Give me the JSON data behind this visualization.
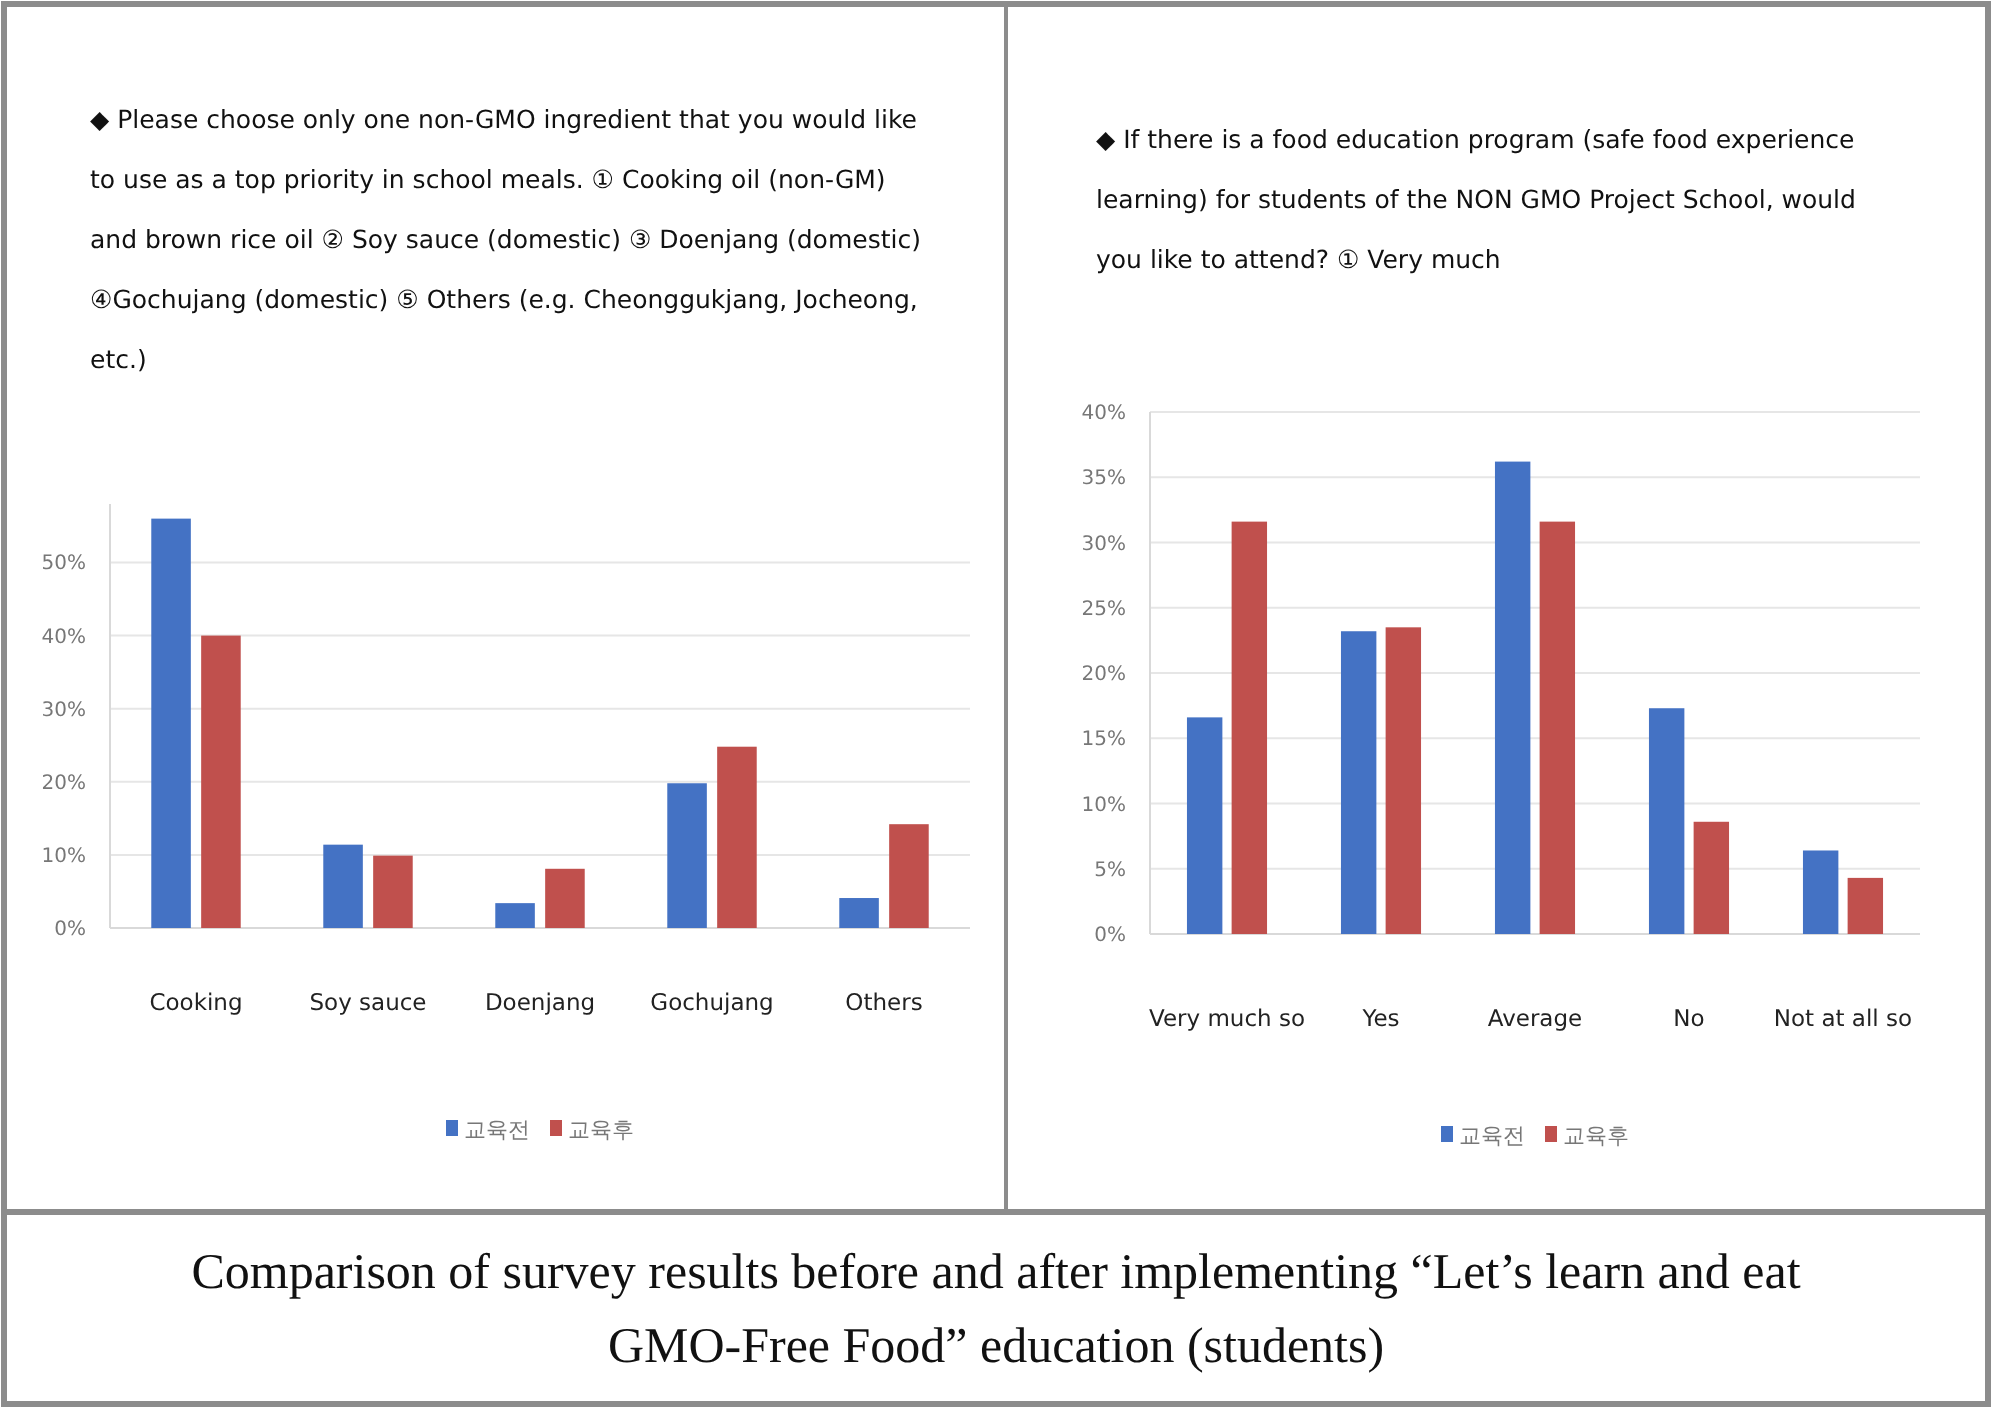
{
  "chart_data": [
    {
      "type": "bar",
      "title": "◆  Please choose only one non-GMO ingredient that you would like to use as a top priority in school meals. ① Cooking oil (non-GM) and brown rice oil ② Soy sauce (domestic) ③ Doenjang (domestic) ④Gochujang (domestic) ⑤ Others (e.g. Cheonggukjang, Jocheong, etc.)",
      "categories": [
        "Cooking",
        "Soy sauce",
        "Doenjang",
        "Gochujang",
        "Others"
      ],
      "series": [
        {
          "name": "교육전",
          "color": "#4472c4",
          "values": [
            56,
            11.4,
            3.4,
            19.8,
            4.1
          ]
        },
        {
          "name": "교육후",
          "color": "#c0504d",
          "values": [
            40,
            9.9,
            8.1,
            24.8,
            14.2
          ]
        }
      ],
      "ylim": [
        0,
        58
      ],
      "yticks": [
        {
          "value": 0,
          "label": "0%"
        },
        {
          "value": 10,
          "label": "10%"
        },
        {
          "value": 20,
          "label": "20%"
        },
        {
          "value": 30,
          "label": "30%"
        },
        {
          "value": 40,
          "label": "40%"
        },
        {
          "value": 50,
          "label": "50%"
        }
      ],
      "grid": "y",
      "legend": "bottom"
    },
    {
      "type": "bar",
      "title": "◆  If there is a food education program (safe food experience learning) for students of the NON GMO Project School, would you like to attend? ① Very much",
      "categories": [
        "Very much so",
        "Yes",
        "Average",
        "No",
        "Not at all so"
      ],
      "series": [
        {
          "name": "교육전",
          "color": "#4472c4",
          "values": [
            16.6,
            23.2,
            36.2,
            17.3,
            6.4
          ]
        },
        {
          "name": "교육후",
          "color": "#c0504d",
          "values": [
            31.6,
            23.5,
            31.6,
            8.6,
            4.3
          ]
        }
      ],
      "ylim": [
        0,
        40
      ],
      "yticks": [
        {
          "value": 0,
          "label": "0%"
        },
        {
          "value": 5,
          "label": "5%"
        },
        {
          "value": 10,
          "label": "10%"
        },
        {
          "value": 15,
          "label": "15%"
        },
        {
          "value": 20,
          "label": "20%"
        },
        {
          "value": 25,
          "label": "25%"
        },
        {
          "value": 30,
          "label": "30%"
        },
        {
          "value": 35,
          "label": "35%"
        },
        {
          "value": 40,
          "label": "40%"
        }
      ],
      "grid": "y",
      "legend": "bottom",
      "annotations": [
        "Comparison of survey results before and after implementing “Let’s learn and eat GMO-Free Food” education (students)"
      ]
    }
  ]
}
